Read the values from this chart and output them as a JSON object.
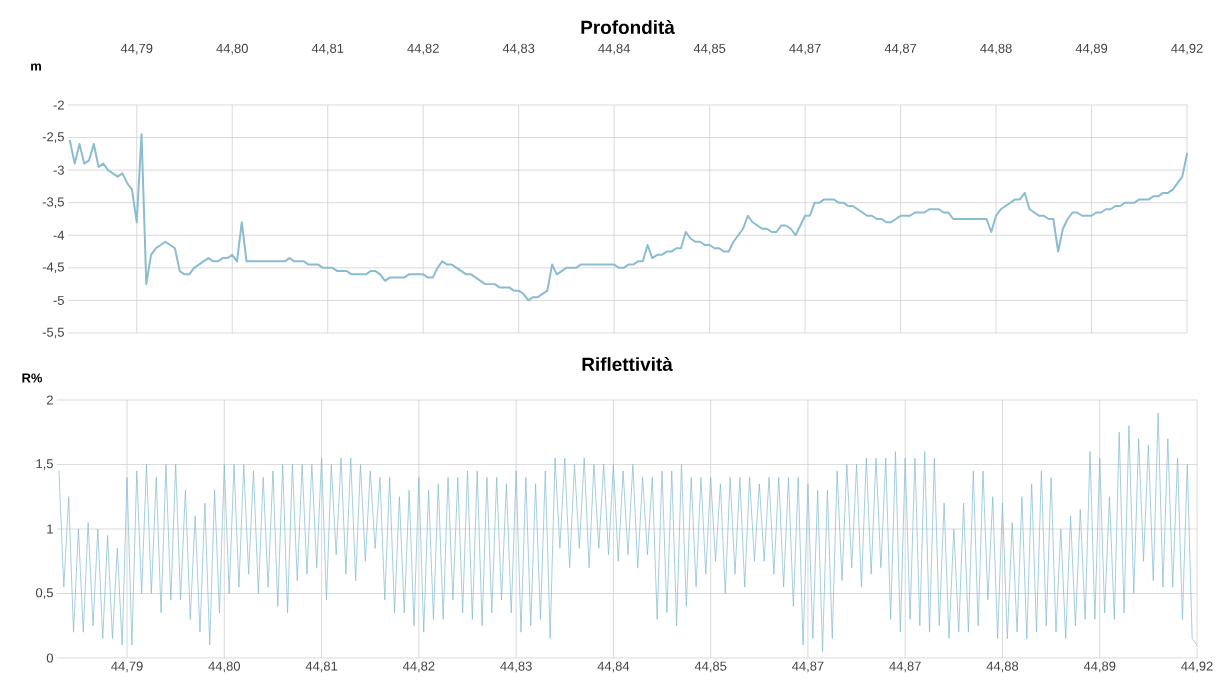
{
  "chart_data": [
    {
      "type": "line",
      "title": "Profondità",
      "ylabel": "m",
      "grid": true,
      "marker": "none",
      "line_style": "solid",
      "categories": [
        null,
        null,
        null,
        null,
        null,
        null,
        null,
        null,
        null,
        null,
        null,
        null,
        null,
        null,
        "44,79",
        null,
        null,
        null,
        null,
        null,
        null,
        null,
        null,
        null,
        null,
        null,
        null,
        null,
        null,
        null,
        null,
        null,
        null,
        null,
        "44,80",
        null,
        null,
        null,
        null,
        null,
        null,
        null,
        null,
        null,
        null,
        null,
        null,
        null,
        null,
        null,
        null,
        null,
        null,
        null,
        "44,81",
        null,
        null,
        null,
        null,
        null,
        null,
        null,
        null,
        null,
        null,
        null,
        null,
        null,
        null,
        null,
        null,
        null,
        null,
        null,
        "44,82",
        null,
        null,
        null,
        null,
        null,
        null,
        null,
        null,
        null,
        null,
        null,
        null,
        null,
        null,
        null,
        null,
        null,
        null,
        null,
        "44,83",
        null,
        null,
        null,
        null,
        null,
        null,
        null,
        null,
        null,
        null,
        null,
        null,
        null,
        null,
        null,
        null,
        null,
        null,
        null,
        "44,84",
        null,
        null,
        null,
        null,
        null,
        null,
        null,
        null,
        null,
        null,
        null,
        null,
        null,
        null,
        null,
        null,
        null,
        null,
        null,
        "44,85",
        null,
        null,
        null,
        null,
        null,
        null,
        null,
        null,
        null,
        null,
        null,
        null,
        null,
        null,
        null,
        null,
        null,
        null,
        null,
        "44,87",
        null,
        null,
        null,
        null,
        null,
        null,
        null,
        null,
        null,
        null,
        null,
        null,
        null,
        null,
        null,
        null,
        null,
        null,
        null,
        "44,87",
        null,
        null,
        null,
        null,
        null,
        null,
        null,
        null,
        null,
        null,
        null,
        null,
        null,
        null,
        null,
        null,
        null,
        null,
        null,
        "44,88",
        null,
        null,
        null,
        null,
        null,
        null,
        null,
        null,
        null,
        null,
        null,
        null,
        null,
        null,
        null,
        null,
        null,
        null,
        null,
        "44,89",
        null,
        null,
        null,
        null,
        null,
        null,
        null,
        null,
        null,
        null,
        null,
        null,
        null,
        null,
        null,
        null,
        null,
        null,
        null,
        "44,92"
      ],
      "ylim": [
        -5.5,
        -2
      ],
      "yticks": [
        {
          "value": -2,
          "label": "-2"
        },
        {
          "value": -2.5,
          "label": "-2,5"
        },
        {
          "value": -3,
          "label": "-3"
        },
        {
          "value": -3.5,
          "label": "-3,5"
        },
        {
          "value": -4,
          "label": "-4"
        },
        {
          "value": -4.5,
          "label": "-4,5"
        },
        {
          "value": -5,
          "label": "-5"
        },
        {
          "value": -5.5,
          "label": "-5,5"
        }
      ],
      "series": [
        {
          "color": "#8bbccf",
          "values": [
            -2.55,
            -2.9,
            -2.6,
            -2.9,
            -2.85,
            -2.6,
            -2.95,
            -2.9,
            -3.0,
            -3.05,
            -3.1,
            -3.05,
            -3.2,
            -3.3,
            -3.8,
            -2.45,
            -4.75,
            -4.3,
            -4.2,
            -4.15,
            -4.1,
            -4.15,
            -4.2,
            -4.55,
            -4.6,
            -4.6,
            -4.5,
            -4.45,
            -4.4,
            -4.35,
            -4.4,
            -4.4,
            -4.35,
            -4.35,
            -4.3,
            -4.4,
            -3.8,
            -4.4,
            -4.4,
            -4.4,
            -4.4,
            -4.4,
            -4.4,
            -4.4,
            -4.4,
            -4.4,
            -4.35,
            -4.4,
            -4.4,
            -4.4,
            -4.45,
            -4.45,
            -4.45,
            -4.5,
            -4.5,
            -4.5,
            -4.55,
            -4.55,
            -4.55,
            -4.6,
            -4.6,
            -4.6,
            -4.6,
            -4.55,
            -4.55,
            -4.6,
            -4.7,
            -4.65,
            -4.65,
            -4.65,
            -4.65,
            -4.6,
            -4.6,
            -4.6,
            -4.6,
            -4.65,
            -4.65,
            -4.5,
            -4.4,
            -4.45,
            -4.45,
            -4.5,
            -4.55,
            -4.6,
            -4.6,
            -4.65,
            -4.7,
            -4.75,
            -4.75,
            -4.75,
            -4.8,
            -4.8,
            -4.8,
            -4.85,
            -4.85,
            -4.9,
            -5.0,
            -4.95,
            -4.95,
            -4.9,
            -4.85,
            -4.45,
            -4.6,
            -4.55,
            -4.5,
            -4.5,
            -4.5,
            -4.45,
            -4.45,
            -4.45,
            -4.45,
            -4.45,
            -4.45,
            -4.45,
            -4.45,
            -4.5,
            -4.5,
            -4.45,
            -4.45,
            -4.4,
            -4.4,
            -4.15,
            -4.35,
            -4.3,
            -4.3,
            -4.25,
            -4.25,
            -4.2,
            -4.2,
            -3.95,
            -4.05,
            -4.1,
            -4.1,
            -4.15,
            -4.15,
            -4.2,
            -4.2,
            -4.25,
            -4.25,
            -4.1,
            -4.0,
            -3.9,
            -3.7,
            -3.8,
            -3.85,
            -3.9,
            -3.9,
            -3.95,
            -3.95,
            -3.85,
            -3.85,
            -3.9,
            -4.0,
            -3.85,
            -3.7,
            -3.7,
            -3.5,
            -3.5,
            -3.45,
            -3.45,
            -3.45,
            -3.5,
            -3.5,
            -3.55,
            -3.55,
            -3.6,
            -3.65,
            -3.7,
            -3.7,
            -3.75,
            -3.75,
            -3.8,
            -3.8,
            -3.75,
            -3.7,
            -3.7,
            -3.7,
            -3.65,
            -3.65,
            -3.65,
            -3.6,
            -3.6,
            -3.6,
            -3.65,
            -3.65,
            -3.75,
            -3.75,
            -3.75,
            -3.75,
            -3.75,
            -3.75,
            -3.75,
            -3.75,
            -3.95,
            -3.7,
            -3.6,
            -3.55,
            -3.5,
            -3.45,
            -3.45,
            -3.35,
            -3.6,
            -3.65,
            -3.7,
            -3.7,
            -3.75,
            -3.75,
            -4.25,
            -3.9,
            -3.75,
            -3.65,
            -3.65,
            -3.7,
            -3.7,
            -3.7,
            -3.65,
            -3.65,
            -3.6,
            -3.6,
            -3.55,
            -3.55,
            -3.5,
            -3.5,
            -3.5,
            -3.45,
            -3.45,
            -3.45,
            -3.4,
            -3.4,
            -3.35,
            -3.35,
            -3.3,
            -3.2,
            -3.1,
            -2.75
          ]
        }
      ]
    },
    {
      "type": "line",
      "title": "Riflettività",
      "ylabel": "R%",
      "grid": true,
      "marker": "none",
      "line_style": "solid",
      "categories": [
        null,
        null,
        null,
        null,
        null,
        null,
        null,
        null,
        null,
        null,
        null,
        null,
        null,
        null,
        "44,79",
        null,
        null,
        null,
        null,
        null,
        null,
        null,
        null,
        null,
        null,
        null,
        null,
        null,
        null,
        null,
        null,
        null,
        null,
        null,
        "44,80",
        null,
        null,
        null,
        null,
        null,
        null,
        null,
        null,
        null,
        null,
        null,
        null,
        null,
        null,
        null,
        null,
        null,
        null,
        null,
        "44,81",
        null,
        null,
        null,
        null,
        null,
        null,
        null,
        null,
        null,
        null,
        null,
        null,
        null,
        null,
        null,
        null,
        null,
        null,
        null,
        "44,82",
        null,
        null,
        null,
        null,
        null,
        null,
        null,
        null,
        null,
        null,
        null,
        null,
        null,
        null,
        null,
        null,
        null,
        null,
        null,
        "44,83",
        null,
        null,
        null,
        null,
        null,
        null,
        null,
        null,
        null,
        null,
        null,
        null,
        null,
        null,
        null,
        null,
        null,
        null,
        null,
        "44,84",
        null,
        null,
        null,
        null,
        null,
        null,
        null,
        null,
        null,
        null,
        null,
        null,
        null,
        null,
        null,
        null,
        null,
        null,
        null,
        "44,85",
        null,
        null,
        null,
        null,
        null,
        null,
        null,
        null,
        null,
        null,
        null,
        null,
        null,
        null,
        null,
        null,
        null,
        null,
        null,
        "44,87",
        null,
        null,
        null,
        null,
        null,
        null,
        null,
        null,
        null,
        null,
        null,
        null,
        null,
        null,
        null,
        null,
        null,
        null,
        null,
        "44,87",
        null,
        null,
        null,
        null,
        null,
        null,
        null,
        null,
        null,
        null,
        null,
        null,
        null,
        null,
        null,
        null,
        null,
        null,
        null,
        "44,88",
        null,
        null,
        null,
        null,
        null,
        null,
        null,
        null,
        null,
        null,
        null,
        null,
        null,
        null,
        null,
        null,
        null,
        null,
        null,
        "44,89",
        null,
        null,
        null,
        null,
        null,
        null,
        null,
        null,
        null,
        null,
        null,
        null,
        null,
        null,
        null,
        null,
        null,
        null,
        null,
        "44,92"
      ],
      "ylim": [
        0,
        2
      ],
      "yticks": [
        {
          "value": 0,
          "label": "0"
        },
        {
          "value": 0.5,
          "label": "0,5"
        },
        {
          "value": 1,
          "label": "1"
        },
        {
          "value": 1.5,
          "label": "1,5"
        },
        {
          "value": 2,
          "label": "2"
        }
      ],
      "series": [
        {
          "color": "#7fb8cf",
          "values": [
            1.45,
            0.55,
            1.25,
            0.2,
            1.0,
            0.2,
            1.05,
            0.25,
            1.0,
            0.15,
            0.95,
            0.15,
            0.85,
            0.1,
            1.4,
            0.1,
            1.45,
            0.5,
            1.5,
            0.5,
            1.4,
            0.35,
            1.5,
            0.45,
            1.5,
            0.45,
            1.3,
            0.3,
            1.1,
            0.2,
            1.2,
            0.1,
            1.3,
            0.35,
            1.5,
            0.5,
            1.5,
            0.55,
            1.5,
            0.65,
            1.45,
            0.5,
            1.4,
            0.55,
            1.45,
            0.4,
            1.5,
            0.35,
            1.5,
            0.6,
            1.5,
            0.65,
            1.5,
            0.7,
            1.55,
            0.45,
            1.5,
            0.8,
            1.55,
            0.65,
            1.55,
            0.6,
            1.5,
            0.75,
            1.45,
            0.85,
            1.4,
            0.45,
            1.4,
            0.35,
            1.25,
            0.35,
            1.3,
            0.25,
            1.4,
            0.2,
            1.3,
            0.3,
            1.35,
            0.3,
            1.4,
            0.45,
            1.4,
            0.35,
            1.45,
            0.3,
            1.45,
            0.25,
            1.4,
            0.35,
            1.4,
            0.45,
            1.35,
            0.35,
            1.45,
            0.2,
            1.4,
            0.25,
            1.35,
            0.3,
            1.45,
            0.15,
            1.55,
            0.85,
            1.55,
            0.7,
            1.5,
            0.85,
            1.55,
            0.7,
            1.5,
            0.85,
            1.5,
            0.8,
            1.5,
            0.75,
            1.45,
            0.8,
            1.5,
            0.7,
            1.4,
            0.8,
            1.4,
            0.3,
            1.45,
            0.35,
            1.45,
            0.25,
            1.5,
            0.4,
            1.4,
            0.55,
            1.4,
            0.65,
            1.4,
            0.75,
            1.35,
            0.5,
            1.4,
            0.65,
            1.4,
            0.55,
            1.4,
            0.75,
            1.35,
            0.75,
            1.4,
            0.65,
            1.4,
            0.55,
            1.4,
            0.4,
            1.4,
            0.1,
            1.35,
            0.15,
            1.3,
            0.05,
            1.3,
            0.15,
            1.45,
            0.6,
            1.5,
            0.7,
            1.5,
            0.55,
            1.55,
            0.65,
            1.55,
            0.7,
            1.55,
            0.3,
            1.6,
            0.2,
            1.55,
            0.3,
            1.55,
            0.25,
            1.6,
            0.2,
            1.55,
            0.25,
            1.2,
            0.15,
            1.0,
            0.2,
            1.2,
            0.2,
            1.45,
            0.25,
            1.45,
            0.45,
            1.25,
            0.15,
            1.2,
            0.15,
            1.05,
            0.2,
            1.25,
            0.15,
            1.35,
            0.2,
            1.45,
            0.25,
            1.4,
            0.2,
            1.0,
            0.15,
            1.1,
            0.25,
            1.15,
            0.3,
            1.6,
            0.3,
            1.55,
            0.35,
            1.25,
            0.3,
            1.75,
            0.35,
            1.8,
            0.5,
            1.7,
            0.75,
            1.65,
            0.6,
            1.9,
            0.55,
            1.7,
            0.55,
            1.55,
            0.3,
            1.5,
            0.15,
            0.1
          ]
        }
      ]
    }
  ]
}
